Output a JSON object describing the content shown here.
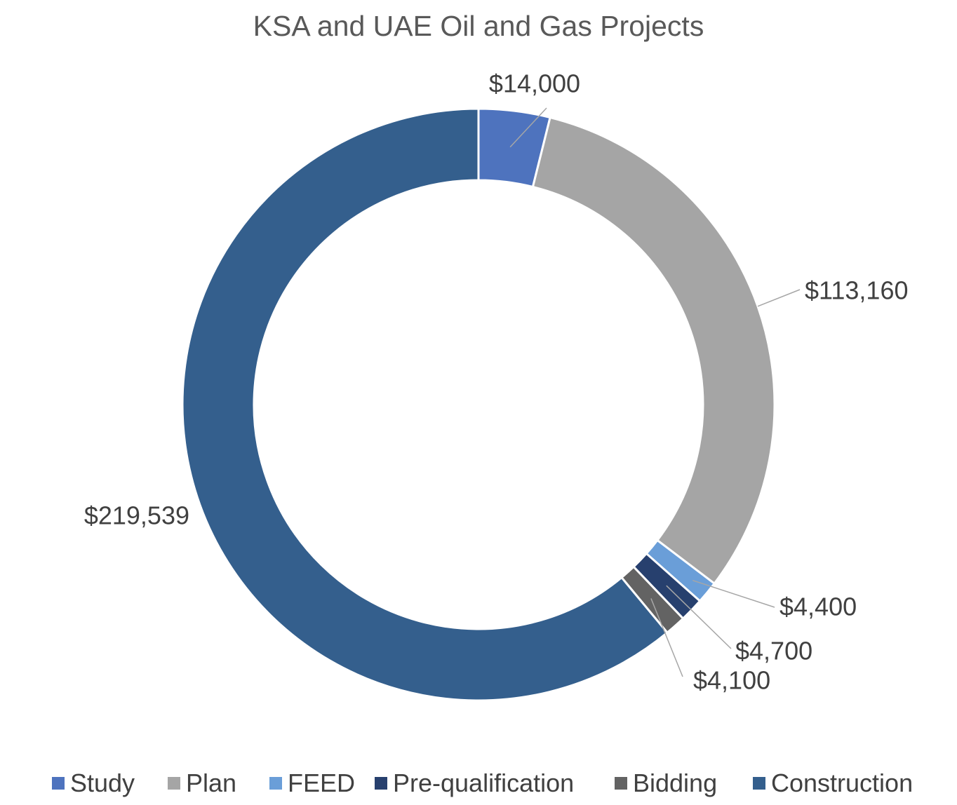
{
  "chart_data": {
    "type": "pie",
    "donut": true,
    "title": "KSA and UAE Oil and Gas Projects",
    "categories": [
      "Study",
      "Plan",
      "FEED",
      "Pre-qualification",
      "Bidding",
      "Construction"
    ],
    "values": [
      14000,
      113160,
      4400,
      4700,
      4100,
      219539
    ],
    "data_labels": [
      "$14,000",
      "$113,160",
      "$4,400",
      "$4,700",
      "$4,100",
      "$219,539"
    ],
    "colors": [
      "#4E73BE",
      "#A5A5A5",
      "#6A9ED8",
      "#27406E",
      "#636363",
      "#345F8D"
    ],
    "legend_position": "bottom"
  }
}
